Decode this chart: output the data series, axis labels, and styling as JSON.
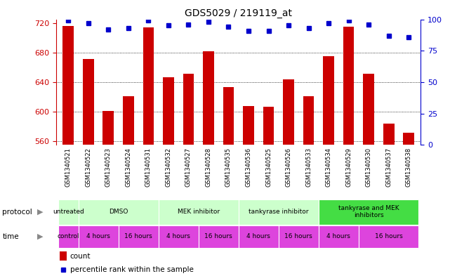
{
  "title": "GDS5029 / 219119_at",
  "samples": [
    "GSM1340521",
    "GSM1340522",
    "GSM1340523",
    "GSM1340524",
    "GSM1340531",
    "GSM1340532",
    "GSM1340527",
    "GSM1340528",
    "GSM1340535",
    "GSM1340536",
    "GSM1340525",
    "GSM1340526",
    "GSM1340533",
    "GSM1340534",
    "GSM1340529",
    "GSM1340530",
    "GSM1340537",
    "GSM1340538"
  ],
  "counts": [
    716,
    671,
    601,
    621,
    714,
    647,
    651,
    682,
    633,
    608,
    607,
    644,
    621,
    675,
    715,
    651,
    584,
    571
  ],
  "percentile_ranks": [
    99,
    97,
    92,
    93,
    99,
    95,
    96,
    98,
    94,
    91,
    91,
    95,
    93,
    97,
    99,
    96,
    87,
    86
  ],
  "ylim_left": [
    555,
    725
  ],
  "ylim_right": [
    0,
    100
  ],
  "yticks_left": [
    560,
    600,
    640,
    680,
    720
  ],
  "yticks_right": [
    0,
    25,
    50,
    75,
    100
  ],
  "bar_color": "#cc0000",
  "dot_color": "#0000cc",
  "background_color": "#ffffff",
  "grid_color": "#000000",
  "proto_groups": [
    {
      "label": "untreated",
      "start": 0,
      "end": 1,
      "color": "#ccffcc"
    },
    {
      "label": "DMSO",
      "start": 1,
      "end": 5,
      "color": "#ccffcc"
    },
    {
      "label": "MEK inhibitor",
      "start": 5,
      "end": 9,
      "color": "#ccffcc"
    },
    {
      "label": "tankyrase inhibitor",
      "start": 9,
      "end": 13,
      "color": "#ccffcc"
    },
    {
      "label": "tankyrase and MEK\ninhibitors",
      "start": 13,
      "end": 18,
      "color": "#44dd44"
    }
  ],
  "time_groups": [
    {
      "label": "control",
      "start": 0,
      "end": 1,
      "color": "#dd44dd"
    },
    {
      "label": "4 hours",
      "start": 1,
      "end": 3,
      "color": "#dd44dd"
    },
    {
      "label": "16 hours",
      "start": 3,
      "end": 5,
      "color": "#dd44dd"
    },
    {
      "label": "4 hours",
      "start": 5,
      "end": 7,
      "color": "#dd44dd"
    },
    {
      "label": "16 hours",
      "start": 7,
      "end": 9,
      "color": "#dd44dd"
    },
    {
      "label": "4 hours",
      "start": 9,
      "end": 11,
      "color": "#dd44dd"
    },
    {
      "label": "16 hours",
      "start": 11,
      "end": 13,
      "color": "#dd44dd"
    },
    {
      "label": "4 hours",
      "start": 13,
      "end": 15,
      "color": "#dd44dd"
    },
    {
      "label": "16 hours",
      "start": 15,
      "end": 18,
      "color": "#dd44dd"
    }
  ],
  "legend_count_color": "#cc0000",
  "legend_dot_color": "#0000cc",
  "left_axis_color": "#cc0000",
  "right_axis_color": "#0000cc",
  "label_row_bg": "#e0e0e0",
  "bar_width": 0.55
}
